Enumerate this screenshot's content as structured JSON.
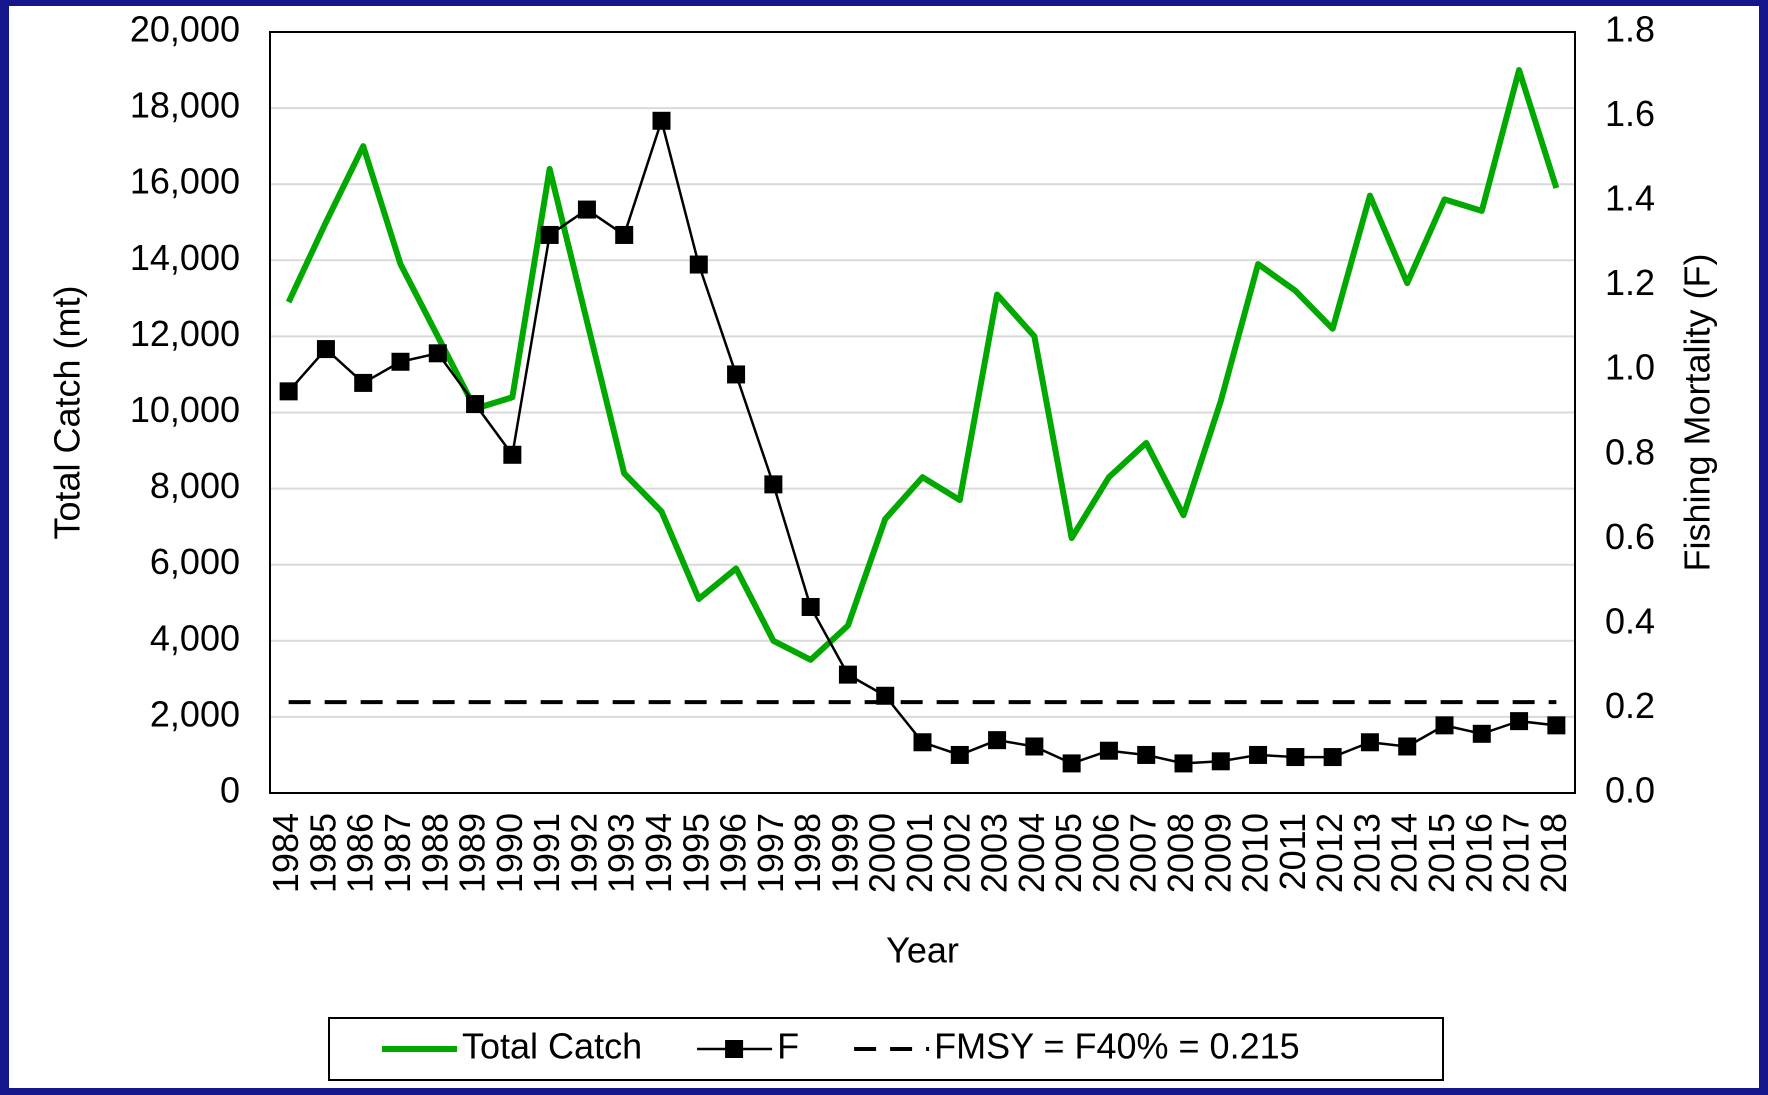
{
  "chart_data": {
    "type": "line",
    "x_label": "Year",
    "y_label": "Total Catch (mt)",
    "y2_label": "Fishing Mortality (F)",
    "categories": [
      "1984",
      "1985",
      "1986",
      "1987",
      "1988",
      "1989",
      "1990",
      "1991",
      "1992",
      "1993",
      "1994",
      "1995",
      "1996",
      "1997",
      "1998",
      "1999",
      "2000",
      "2001",
      "2002",
      "2003",
      "2004",
      "2005",
      "2006",
      "2007",
      "2008",
      "2009",
      "2010",
      "2011",
      "2012",
      "2013",
      "2014",
      "2015",
      "2016",
      "2017",
      "2018"
    ],
    "series": [
      {
        "name": "Total Catch",
        "color": "#00a800",
        "values": [
          12900,
          15000,
          17000,
          13900,
          12000,
          10100,
          10400,
          16400,
          12400,
          8400,
          7400,
          5100,
          5900,
          4000,
          3500,
          4400,
          7200,
          8300,
          7700,
          13100,
          12000,
          6700,
          8300,
          9200,
          7300,
          10300,
          13900,
          13200,
          12200,
          15700,
          13400,
          15600,
          15300,
          19000,
          15900
        ]
      },
      {
        "name": "F",
        "color": "#000000",
        "axis": "y2",
        "marker": "square",
        "values": [
          0.95,
          1.05,
          0.97,
          1.02,
          1.04,
          0.92,
          0.8,
          1.32,
          1.38,
          1.32,
          1.59,
          1.25,
          0.99,
          0.73,
          0.44,
          0.28,
          0.23,
          0.12,
          0.09,
          0.125,
          0.11,
          0.07,
          0.1,
          0.09,
          0.07,
          0.075,
          0.09,
          0.085,
          0.085,
          0.12,
          0.11,
          0.16,
          0.14,
          0.17,
          0.16
        ]
      }
    ],
    "reference_line": {
      "name": "FMSY = F40% = 0.215",
      "value": 0.215,
      "axis": "y2",
      "color": "#000000",
      "dashed": true
    },
    "ylim": [
      0,
      20000
    ],
    "yticks": [
      0,
      {
        "value": 2000,
        "label": "2,000"
      },
      {
        "value": 4000,
        "label": "4,000"
      },
      {
        "value": 6000,
        "label": "6,000"
      },
      {
        "value": 8000,
        "label": "8,000"
      },
      {
        "value": 10000,
        "label": "10,000"
      },
      {
        "value": 12000,
        "label": "12,000"
      },
      {
        "value": 14000,
        "label": "14,000"
      },
      {
        "value": 16000,
        "label": "16,000"
      },
      {
        "value": 18000,
        "label": "18,000"
      },
      {
        "value": 20000,
        "label": "20,000"
      }
    ],
    "y2lim": [
      0,
      1.8
    ],
    "y2ticks": [
      {
        "value": 0,
        "label": "0.0"
      },
      0.2,
      0.4,
      0.6,
      0.8,
      {
        "value": 1,
        "label": "1.0"
      },
      1.2,
      1.4,
      1.6,
      1.8
    ],
    "grid": true,
    "legend": "bottom"
  }
}
